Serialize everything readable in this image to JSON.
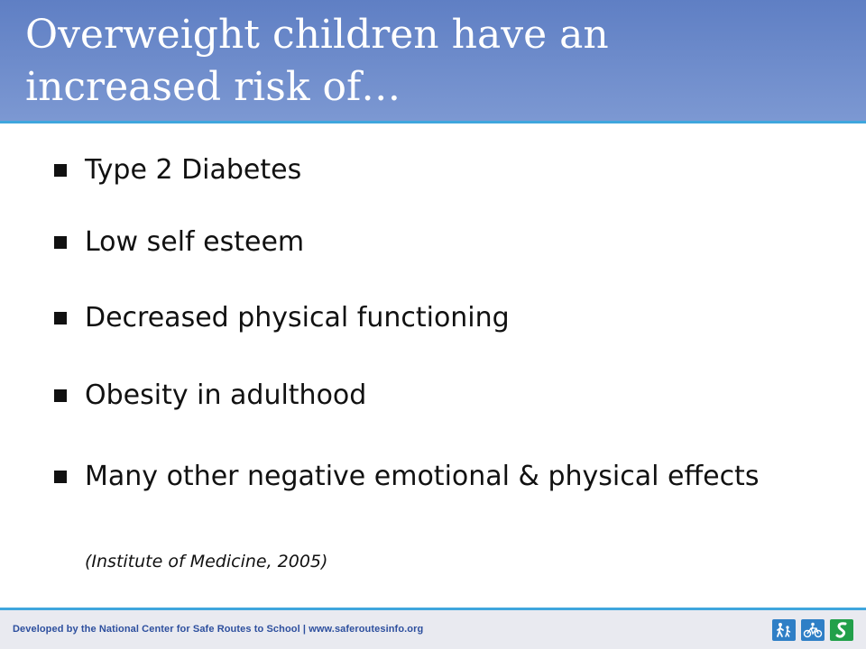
{
  "slide": {
    "title_line1": "Overweight children have an",
    "title_line2": "increased risk of…"
  },
  "bullets": [
    {
      "text": "Type 2 Diabetes"
    },
    {
      "text": "Low self esteem"
    },
    {
      "text": "Decreased physical functioning"
    },
    {
      "text": "Obesity in adulthood"
    },
    {
      "text": "Many other negative emotional & physical effects"
    }
  ],
  "citation": "(Institute of Medicine, 2005)",
  "footer": {
    "text": "Developed by the National Center for Safe Routes to School | www.saferoutesinfo.org",
    "icons": [
      "walking-icon",
      "bicycle-icon",
      "safe-routes-logo-icon"
    ]
  },
  "colors": {
    "header": "#6d8bcb",
    "accent_line": "#3fa6dd",
    "footer_text": "#2d4f9e",
    "icon_blue": "#2f7fc6",
    "icon_green": "#22a04a"
  }
}
